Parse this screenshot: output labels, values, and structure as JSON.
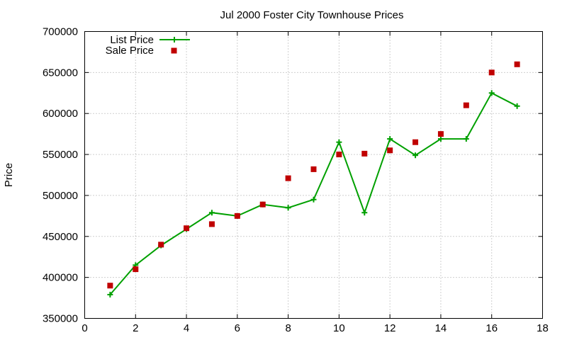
{
  "chart_data": {
    "type": "line",
    "title": "Jul 2000 Foster City Townhouse Prices",
    "xlabel": "",
    "ylabel": "Price",
    "xlim": [
      0,
      18
    ],
    "ylim": [
      350000,
      700000
    ],
    "xticks": [
      0,
      2,
      4,
      6,
      8,
      10,
      12,
      14,
      16,
      18
    ],
    "yticks": [
      350000,
      400000,
      450000,
      500000,
      550000,
      600000,
      650000,
      700000
    ],
    "grid": true,
    "legend_position": "top-left",
    "series": [
      {
        "name": "List Price",
        "style": "line+plus",
        "color": "#00a000",
        "x": [
          1,
          2,
          3,
          4,
          5,
          6,
          7,
          8,
          9,
          10,
          11,
          12,
          13,
          14,
          15,
          16,
          17
        ],
        "y": [
          379000,
          415000,
          439000,
          459000,
          479000,
          475000,
          489000,
          485000,
          495000,
          565000,
          479000,
          569000,
          549000,
          569000,
          569000,
          625000,
          609000
        ]
      },
      {
        "name": "Sale Price",
        "style": "points-square",
        "color": "#c00000",
        "x": [
          1,
          2,
          3,
          4,
          5,
          6,
          7,
          8,
          9,
          10,
          11,
          12,
          13,
          14,
          15,
          16,
          17
        ],
        "y": [
          390000,
          410000,
          440000,
          460000,
          465000,
          475000,
          489000,
          521000,
          532000,
          550000,
          551000,
          555000,
          565000,
          575000,
          610000,
          650000,
          660000
        ]
      }
    ]
  }
}
